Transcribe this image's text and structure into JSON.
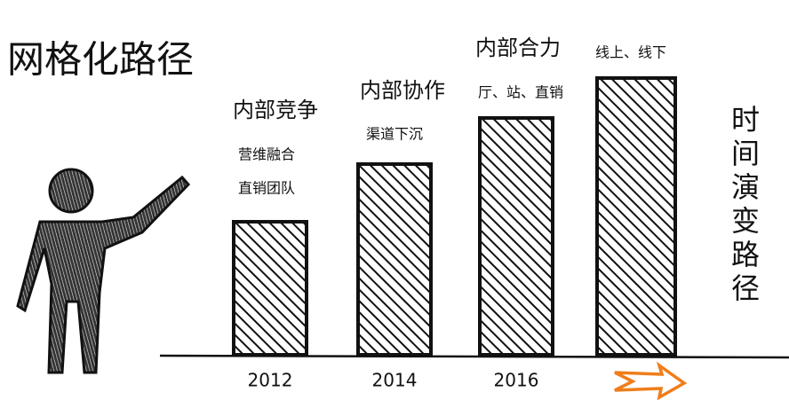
{
  "chart_data": {
    "type": "bar",
    "title": "网格化路径",
    "categories": [
      "2012",
      "2014",
      "2016",
      null
    ],
    "values": [
      150,
      215,
      267,
      312
    ],
    "color": "#111111",
    "ylim": [
      0,
      320
    ],
    "annotations": [
      "内部竞争",
      "营维融合",
      "直销团队",
      "内部协作",
      "渠道下沉",
      "内部合力",
      "厅、站、直销",
      "线上、线下"
    ],
    "side_label": "时间演变路径"
  }
}
